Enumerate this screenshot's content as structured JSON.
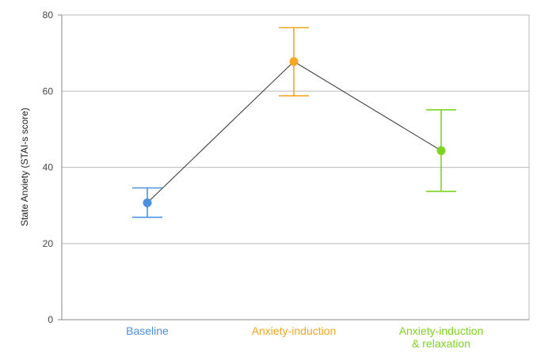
{
  "chart_data": {
    "type": "line",
    "title": "",
    "xlabel": "",
    "ylabel": "State Anxiety (STAI-s score)",
    "ylim": [
      0,
      80
    ],
    "yticks": [
      0,
      20,
      40,
      60,
      80
    ],
    "grid": true,
    "categories": [
      [
        "Baseline"
      ],
      [
        "Anxiety-induction"
      ],
      [
        "Anxiety-induction",
        "& relaxation"
      ]
    ],
    "colors": [
      "#4a90e2",
      "#f5a623",
      "#7ed321"
    ],
    "line_color": "#333333",
    "series": [
      {
        "values": [
          30.7,
          67.8,
          44.4
        ],
        "error_low": [
          26.9,
          58.8,
          33.7
        ],
        "error_high": [
          34.6,
          76.7,
          55.1
        ]
      }
    ]
  }
}
